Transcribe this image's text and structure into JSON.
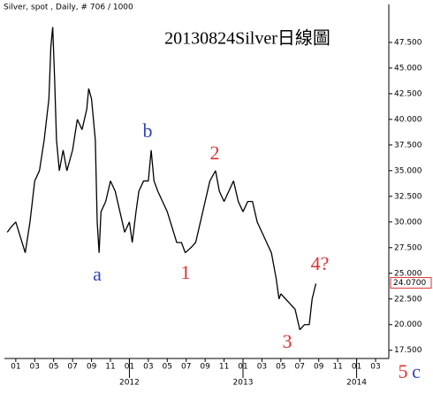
{
  "chart_data": {
    "type": "line",
    "header": "Silver, spot , Daily, # 706 / 1000",
    "title": "20130824Silver日線圖",
    "series": [
      {
        "name": "Silver",
        "color": "#000000",
        "x": [
          -0.9,
          -0.5,
          0,
          0.5,
          1,
          1.5,
          2,
          2.5,
          3,
          3.5,
          3.7,
          3.9,
          4.1,
          4.3,
          4.6,
          5,
          5.4,
          6,
          6.5,
          7,
          7.5,
          7.7,
          8,
          8.4,
          8.6,
          8.8,
          9,
          9.5,
          10,
          10.5,
          11,
          11.5,
          12,
          12.3,
          12.7,
          13,
          13.5,
          14,
          14.3,
          14.6,
          15,
          15.5,
          16,
          16.5,
          17,
          17.5,
          17.9,
          18.5,
          19,
          19.5,
          20,
          20.5,
          21.1,
          21.5,
          22,
          22.5,
          23,
          23.5,
          24,
          24.5,
          25,
          25.5,
          26,
          26.5,
          27,
          27.5,
          27.8,
          28,
          28.5,
          29,
          29.5,
          30,
          30.5,
          31,
          31.3,
          31.7
        ],
        "values": [
          29,
          29.5,
          30,
          28.5,
          27,
          30,
          34,
          35,
          38,
          42,
          47,
          49,
          44,
          38,
          35,
          37,
          35,
          37,
          40,
          39,
          41,
          43,
          42,
          38,
          30,
          27,
          31,
          32,
          34,
          33,
          31,
          29,
          30,
          28,
          31,
          33,
          34,
          34,
          37,
          34,
          33,
          32,
          31,
          29.5,
          28,
          28,
          27,
          27.5,
          28,
          30,
          32,
          34,
          35,
          33,
          32,
          33,
          34,
          32,
          31,
          32,
          32,
          30,
          29,
          28,
          27,
          24.5,
          22.5,
          23,
          22.5,
          22,
          21.5,
          19.5,
          20,
          20,
          22.5,
          24
        ]
      }
    ],
    "xlim": [
      -1.2,
      39.4
    ],
    "xticks": [
      {
        "value": 0,
        "label": "01"
      },
      {
        "value": 2,
        "label": "03"
      },
      {
        "value": 4,
        "label": "05"
      },
      {
        "value": 6,
        "label": "07"
      },
      {
        "value": 8,
        "label": "09"
      },
      {
        "value": 10,
        "label": "11"
      },
      {
        "value": 12,
        "label": "01"
      },
      {
        "value": 14,
        "label": "03"
      },
      {
        "value": 16,
        "label": "05"
      },
      {
        "value": 18,
        "label": "07"
      },
      {
        "value": 20,
        "label": "09"
      },
      {
        "value": 22,
        "label": "11"
      },
      {
        "value": 24,
        "label": "01"
      },
      {
        "value": 26,
        "label": "03"
      },
      {
        "value": 28,
        "label": "05"
      },
      {
        "value": 30,
        "label": "07"
      },
      {
        "value": 32,
        "label": "09"
      },
      {
        "value": 34,
        "label": "11"
      },
      {
        "value": 36,
        "label": "01"
      },
      {
        "value": 38,
        "label": "03"
      }
    ],
    "years": [
      {
        "value": 12,
        "label": "2012"
      },
      {
        "value": 24,
        "label": "2013"
      },
      {
        "value": 36,
        "label": "2014"
      }
    ],
    "ylim": [
      16.7,
      51.2
    ],
    "yticks": [
      {
        "value": 17.5,
        "label": "17.500"
      },
      {
        "value": 20,
        "label": "20.000"
      },
      {
        "value": 22.5,
        "label": "22.500"
      },
      {
        "value": 25,
        "label": "25.000"
      },
      {
        "value": 27.5,
        "label": "27.500"
      },
      {
        "value": 30,
        "label": "30.000"
      },
      {
        "value": 32.5,
        "label": "32.500"
      },
      {
        "value": 35,
        "label": "35.000"
      },
      {
        "value": 37.5,
        "label": "37.500"
      },
      {
        "value": 40,
        "label": "40.000"
      },
      {
        "value": 42.5,
        "label": "42.500"
      },
      {
        "value": 45,
        "label": "45.000"
      },
      {
        "value": 47.5,
        "label": "47.500"
      }
    ],
    "last": {
      "value": 24.07,
      "label": "24.0700"
    },
    "annotations": [
      {
        "text": "a",
        "color": "#3344bb"
      },
      {
        "text": "b",
        "color": "#3344bb"
      },
      {
        "text": "1",
        "color": "#dd3333"
      },
      {
        "text": "2",
        "color": "#dd3333"
      },
      {
        "text": "3",
        "color": "#dd3333"
      },
      {
        "text": "4?",
        "color": "#dd3333"
      },
      {
        "text": "5",
        "color": "#dd3333"
      },
      {
        "text": "c",
        "color": "#3344bb"
      }
    ]
  }
}
